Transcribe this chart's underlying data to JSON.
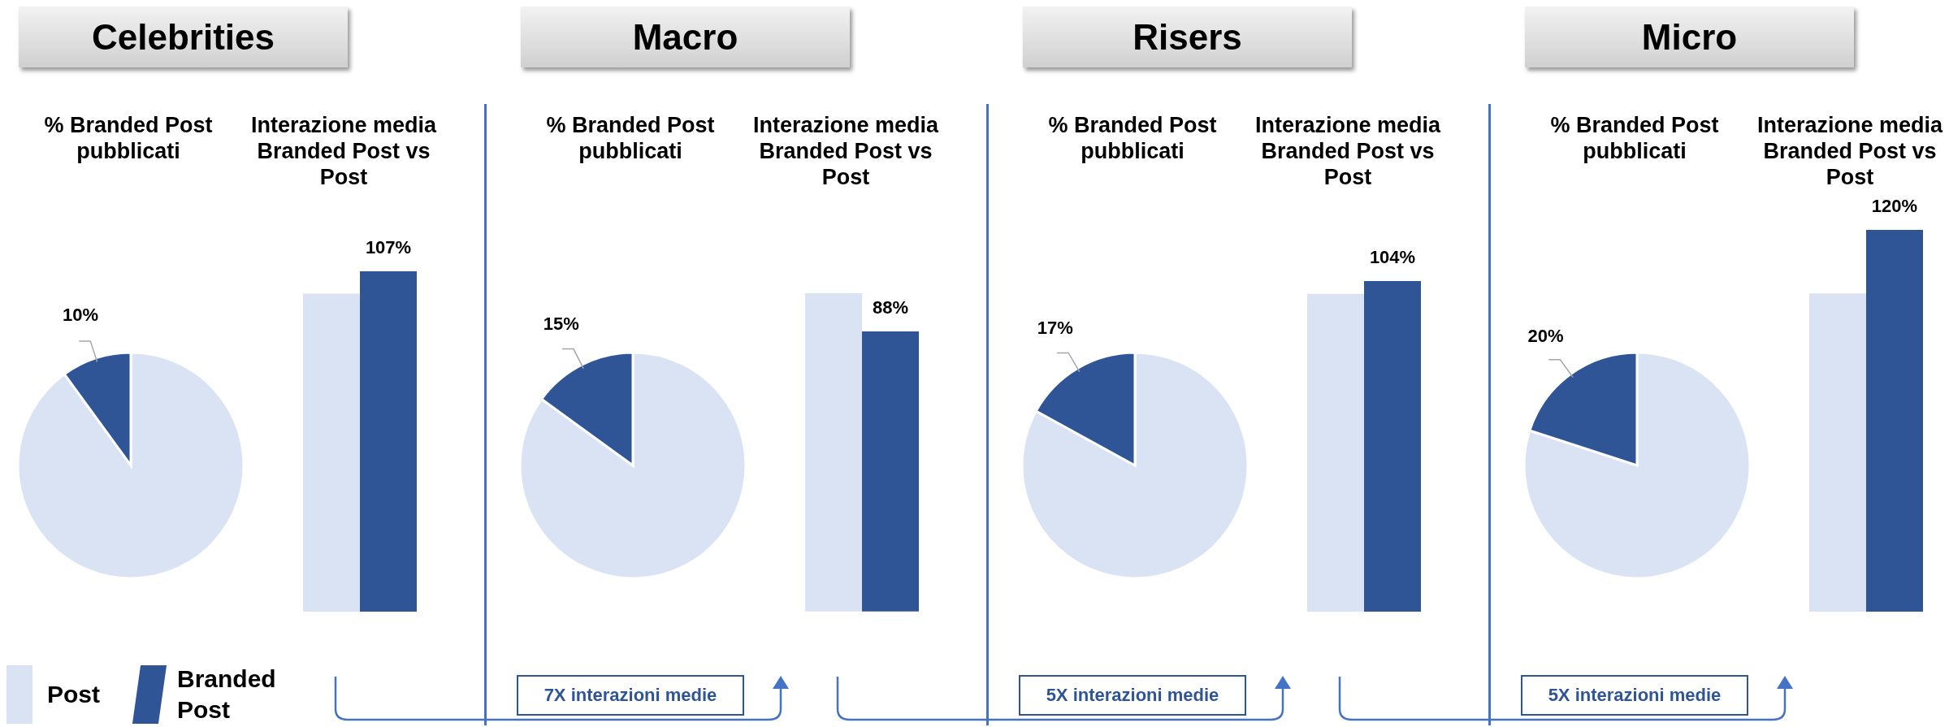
{
  "chart_data": [
    {
      "type": "pie",
      "title": "Celebrities",
      "subtitle": "% Branded Post pubblicati",
      "categories": [
        "Post",
        "Branded Post"
      ],
      "values": [
        90,
        10
      ],
      "colors": [
        "#dae3f3",
        "#2f5597"
      ],
      "value_labels": [
        null,
        "10%"
      ],
      "legend": "bottom"
    },
    {
      "type": "bar",
      "title": "Interazione media Branded Post vs Post",
      "categories": [
        null,
        null
      ],
      "values": [
        100,
        107
      ],
      "colors": [
        "#dae3f3",
        "#2f5597"
      ],
      "value_labels": [
        null,
        "107%"
      ]
    },
    {
      "type": "pie",
      "title": "Macro",
      "subtitle": "% Branded Post pubblicati",
      "categories": [
        null,
        null
      ],
      "values": [
        85,
        15
      ],
      "colors": [
        "#dae3f3",
        "#2f5597"
      ],
      "value_labels": [
        null,
        "15%"
      ],
      "annotations": [
        "7X interazioni medie"
      ]
    },
    {
      "type": "bar",
      "title": "Interazione media Branded Post vs Post",
      "categories": [
        null,
        null
      ],
      "values": [
        100,
        88
      ],
      "colors": [
        "#dae3f3",
        "#2f5597"
      ],
      "value_labels": [
        null,
        "88%"
      ]
    },
    {
      "type": "pie",
      "title": "Risers",
      "subtitle": "% Branded Post pubblicati",
      "categories": [
        null,
        null
      ],
      "values": [
        83,
        17
      ],
      "colors": [
        "#dae3f3",
        "#2f5597"
      ],
      "value_labels": [
        null,
        "17%"
      ],
      "annotations": [
        "5X interazioni medie"
      ]
    },
    {
      "type": "bar",
      "title": "Interazione media Branded Post vs Post",
      "categories": [
        null,
        null
      ],
      "values": [
        100,
        104
      ],
      "colors": [
        "#dae3f3",
        "#2f5597"
      ],
      "value_labels": [
        null,
        "104%"
      ]
    },
    {
      "type": "pie",
      "title": "Micro",
      "subtitle": "% Branded Post pubblicati",
      "categories": [
        null,
        null
      ],
      "values": [
        80,
        20
      ],
      "colors": [
        "#dae3f3",
        "#2f5597"
      ],
      "value_labels": [
        null,
        "20%"
      ],
      "annotations": [
        "5X interazioni medie"
      ]
    },
    {
      "type": "bar",
      "title": "Interazione media Branded Post vs Post",
      "categories": [
        null,
        null
      ],
      "values": [
        100,
        120
      ],
      "colors": [
        "#dae3f3",
        "#2f5597"
      ],
      "value_labels": [
        null,
        "120%"
      ]
    }
  ]
}
